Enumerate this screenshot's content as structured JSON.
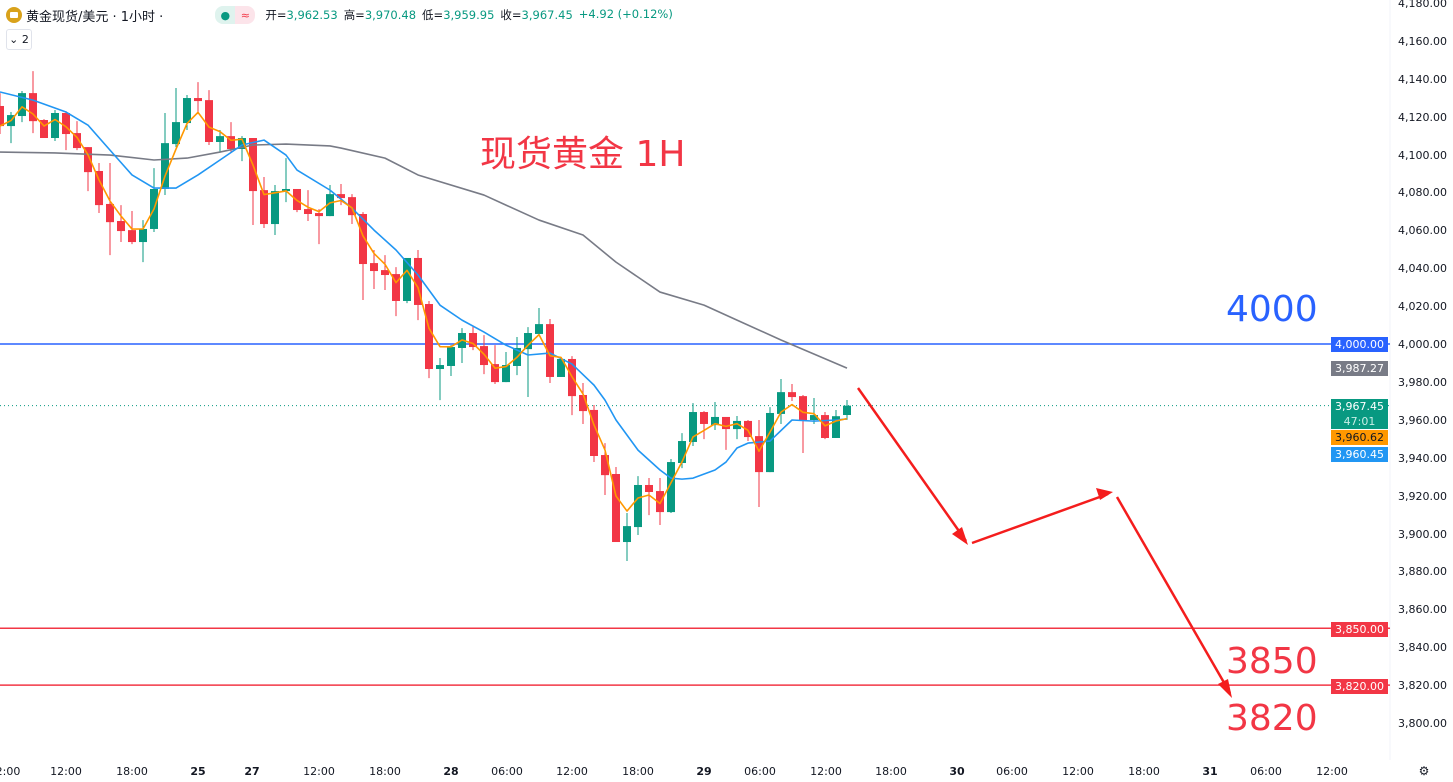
{
  "header": {
    "symbol": "黄金现货/美元 · 1小时 ·",
    "open_label": "开=",
    "open": "3,962.53",
    "high_label": "高=",
    "high": "3,970.48",
    "low_label": "低=",
    "low": "3,959.95",
    "close_label": "收=",
    "close": "3,967.45",
    "change": "+4.92 (+0.12%)",
    "indicator_count": "2"
  },
  "annotations": {
    "title": "现货黄金 1H",
    "level_4000": "4000",
    "level_3850": "3850",
    "level_3820": "3820"
  },
  "price_labels": {
    "line_4000": "4,000.00",
    "ma_gray": "3,987.27",
    "last_price": "3,967.45",
    "countdown": "47:01",
    "ma_orange": "3,960.62",
    "ma_blue": "3,960.45",
    "line_3850": "3,850.00",
    "line_3820": "3,820.00"
  },
  "colors": {
    "up": "#089981",
    "down": "#f23645",
    "ma_blue": "#2196f3",
    "ma_orange": "#ff9800",
    "ma_gray": "#787b86",
    "line_blue": "#2962ff",
    "line_red": "#f23645",
    "gold": "#d9a21b"
  },
  "y_axis": [
    "4,180.00",
    "4,160.00",
    "4,140.00",
    "4,120.00",
    "4,100.00",
    "4,080.00",
    "4,060.00",
    "4,040.00",
    "4,020.00",
    "4,000.00",
    "3,980.00",
    "3,960.00",
    "3,940.00",
    "3,920.00",
    "3,900.00",
    "3,880.00",
    "3,860.00",
    "3,840.00",
    "3,820.00",
    "3,800.00"
  ],
  "x_axis": [
    "2:00",
    "12:00",
    "18:00",
    "25",
    "27",
    "12:00",
    "18:00",
    "28",
    "06:00",
    "12:00",
    "18:00",
    "29",
    "06:00",
    "12:00",
    "18:00",
    "30",
    "06:00",
    "12:00",
    "18:00",
    "31",
    "06:00",
    "12:00"
  ],
  "icons": {
    "settings": "gear-icon",
    "collapse": "chevron-down-icon",
    "logo": "gold-bar-icon"
  },
  "chart_data": {
    "type": "candlestick",
    "ylim": [
      3790,
      4185
    ],
    "horizontal_lines": [
      4000,
      3850,
      3820
    ],
    "candles": [
      [
        4125.6,
        4132.4,
        4110.8,
        4115.0
      ],
      [
        4115.0,
        4122.4,
        4106.0,
        4120.8
      ],
      [
        4120.3,
        4133.5,
        4117.1,
        4132.4
      ],
      [
        4132.4,
        4144.0,
        4111.3,
        4117.6
      ],
      [
        4118.2,
        4118.7,
        4108.7,
        4108.7
      ],
      [
        4108.7,
        4123.5,
        4107.1,
        4121.9
      ],
      [
        4121.9,
        4122.9,
        4102.3,
        4110.8
      ],
      [
        4111.3,
        4117.6,
        4102.3,
        4103.4
      ],
      [
        4103.9,
        4103.9,
        4080.7,
        4090.7
      ],
      [
        4091.3,
        4095.5,
        4069.1,
        4073.3
      ],
      [
        4073.9,
        4095.5,
        4046.9,
        4064.3
      ],
      [
        4064.9,
        4073.3,
        4053.8,
        4059.6
      ],
      [
        4060.1,
        4070.2,
        4052.7,
        4053.8
      ],
      [
        4053.8,
        4065.4,
        4043.2,
        4060.7
      ],
      [
        4060.7,
        4092.8,
        4059.1,
        4081.8
      ],
      [
        4081.8,
        4121.9,
        4078.6,
        4106.0
      ],
      [
        4105.5,
        4135.1,
        4103.9,
        4117.1
      ],
      [
        4116.6,
        4131.4,
        4112.9,
        4129.8
      ],
      [
        4129.8,
        4138.2,
        4121.3,
        4128.2
      ],
      [
        4128.7,
        4134.0,
        4105.0,
        4106.6
      ],
      [
        4106.6,
        4112.9,
        4101.3,
        4109.7
      ],
      [
        4109.7,
        4117.1,
        4100.8,
        4102.9
      ],
      [
        4102.9,
        4109.7,
        4096.5,
        4108.7
      ],
      [
        4108.7,
        4108.7,
        4062.8,
        4080.7
      ],
      [
        4081.2,
        4088.1,
        4061.2,
        4063.3
      ],
      [
        4063.3,
        4083.9,
        4057.5,
        4080.7
      ],
      [
        4080.7,
        4098.1,
        4074.9,
        4081.8
      ],
      [
        4081.8,
        4081.8,
        4069.6,
        4070.7
      ],
      [
        4071.2,
        4081.2,
        4064.9,
        4068.6
      ],
      [
        4069.1,
        4071.2,
        4052.7,
        4067.5
      ],
      [
        4067.5,
        4083.9,
        4067.5,
        4079.1
      ],
      [
        4079.1,
        4084.4,
        4073.3,
        4077.0
      ],
      [
        4077.5,
        4079.1,
        4063.3,
        4068.0
      ],
      [
        4068.6,
        4069.6,
        4023.2,
        4042.2
      ],
      [
        4042.7,
        4049.6,
        4029.0,
        4038.5
      ],
      [
        4039.0,
        4046.9,
        4028.5,
        4036.4
      ],
      [
        4036.9,
        4040.6,
        4014.7,
        4022.7
      ],
      [
        4022.7,
        4045.4,
        4021.6,
        4045.4
      ],
      [
        4045.4,
        4049.6,
        4012.6,
        4020.6
      ],
      [
        4021.1,
        4022.7,
        3982.0,
        3986.8
      ],
      [
        3986.8,
        3992.6,
        3970.4,
        3988.9
      ],
      [
        3988.4,
        3999.4,
        3983.1,
        3998.4
      ],
      [
        3997.9,
        4008.4,
        3990.0,
        4005.8
      ],
      [
        4005.8,
        4009.5,
        3996.8,
        3998.4
      ],
      [
        3998.9,
        4004.7,
        3984.1,
        3988.9
      ],
      [
        3989.4,
        3999.4,
        3978.9,
        3979.9
      ],
      [
        3979.9,
        3995.8,
        3979.9,
        3988.9
      ],
      [
        3988.4,
        4003.7,
        3983.6,
        3997.9
      ],
      [
        3997.3,
        4008.9,
        3972.0,
        4005.8
      ],
      [
        4005.3,
        4019.0,
        4005.3,
        4010.5
      ],
      [
        4010.5,
        4013.2,
        3979.4,
        3982.6
      ],
      [
        3982.6,
        3992.1,
        3982.6,
        3992.1
      ],
      [
        3992.1,
        3993.6,
        3962.5,
        3972.5
      ],
      [
        3973.1,
        3979.4,
        3957.8,
        3964.6
      ],
      [
        3965.2,
        3967.8,
        3937.7,
        3940.9
      ],
      [
        3941.4,
        3947.7,
        3920.3,
        3930.8
      ],
      [
        3931.4,
        3935.1,
        3895.5,
        3895.5
      ],
      [
        3895.5,
        3910.8,
        3885.5,
        3903.9
      ],
      [
        3903.4,
        3930.3,
        3899.2,
        3925.6
      ],
      [
        3925.6,
        3929.3,
        3909.7,
        3921.9
      ],
      [
        3922.4,
        3929.3,
        3904.5,
        3911.3
      ],
      [
        3911.3,
        3939.3,
        3910.8,
        3937.7
      ],
      [
        3937.2,
        3953.0,
        3934.5,
        3948.8
      ],
      [
        3948.3,
        3968.8,
        3946.2,
        3964.1
      ],
      [
        3964.1,
        3964.6,
        3949.8,
        3957.8
      ],
      [
        3957.2,
        3969.4,
        3954.6,
        3961.5
      ],
      [
        3961.5,
        3961.5,
        3944.1,
        3955.1
      ],
      [
        3955.1,
        3962.0,
        3949.8,
        3959.4
      ],
      [
        3959.4,
        3959.9,
        3948.8,
        3950.9
      ],
      [
        3951.4,
        3959.9,
        3914.0,
        3932.4
      ],
      [
        3932.4,
        3966.7,
        3932.4,
        3963.6
      ],
      [
        3963.1,
        3981.5,
        3957.8,
        3974.6
      ],
      [
        3974.6,
        3978.9,
        3969.9,
        3972.0
      ],
      [
        3972.5,
        3973.1,
        3942.5,
        3959.9
      ],
      [
        3959.9,
        3971.5,
        3957.8,
        3962.5
      ],
      [
        3962.5,
        3964.1,
        3949.8,
        3950.4
      ],
      [
        3950.4,
        3965.2,
        3950.4,
        3961.9
      ],
      [
        3962.53,
        3970.48,
        3959.95,
        3967.45
      ]
    ],
    "ma_blue": [
      [
        0,
        4133.0
      ],
      [
        3,
        4128.7
      ],
      [
        6,
        4122.4
      ],
      [
        8,
        4115.5
      ],
      [
        10,
        4102.3
      ],
      [
        12,
        4089.2
      ],
      [
        14,
        4082.3
      ],
      [
        16,
        4082.3
      ],
      [
        18,
        4089.2
      ],
      [
        20,
        4097.1
      ],
      [
        22,
        4105.0
      ],
      [
        24,
        4107.6
      ],
      [
        26,
        4099.7
      ],
      [
        27,
        4091.8
      ],
      [
        30,
        4081.2
      ],
      [
        32,
        4071.7
      ],
      [
        34,
        4060.1
      ],
      [
        36,
        4049.6
      ],
      [
        38,
        4036.4
      ],
      [
        40,
        4020.5
      ],
      [
        42,
        4012.6
      ],
      [
        44,
        4006.3
      ],
      [
        46,
        3999.4
      ],
      [
        48,
        3994.2
      ],
      [
        50,
        3995.2
      ],
      [
        52,
        3989.4
      ],
      [
        54,
        3978.3
      ],
      [
        55,
        3970.4
      ],
      [
        56,
        3959.9
      ],
      [
        58,
        3944.0
      ],
      [
        60,
        3933.5
      ],
      [
        61,
        3929.2
      ],
      [
        62,
        3928.7
      ],
      [
        63,
        3929.2
      ],
      [
        65,
        3933.5
      ],
      [
        66,
        3937.7
      ],
      [
        67,
        3945.1
      ],
      [
        68,
        3947.7
      ],
      [
        70,
        3948.8
      ],
      [
        72,
        3959.9
      ],
      [
        74,
        3959.3
      ],
      [
        76,
        3959.9
      ],
      [
        77,
        3960.45
      ]
    ],
    "ma_gray": [
      [
        0,
        4101.3
      ],
      [
        5,
        4100.8
      ],
      [
        10,
        4099.7
      ],
      [
        14,
        4097.1
      ],
      [
        17,
        4098.1
      ],
      [
        20,
        4101.3
      ],
      [
        23,
        4105.0
      ],
      [
        26,
        4105.5
      ],
      [
        30,
        4104.5
      ],
      [
        31,
        4103.4
      ],
      [
        35,
        4098.1
      ],
      [
        38,
        4089.2
      ],
      [
        44,
        4078.6
      ],
      [
        46,
        4073.3
      ],
      [
        49,
        4065.4
      ],
      [
        53,
        4057.5
      ],
      [
        56,
        4043.2
      ],
      [
        60,
        4027.4
      ],
      [
        64,
        4020.5
      ],
      [
        67,
        4012.6
      ],
      [
        71,
        4002.1
      ],
      [
        77,
        3987.27
      ]
    ],
    "ma_orange_last": 3960.62
  }
}
